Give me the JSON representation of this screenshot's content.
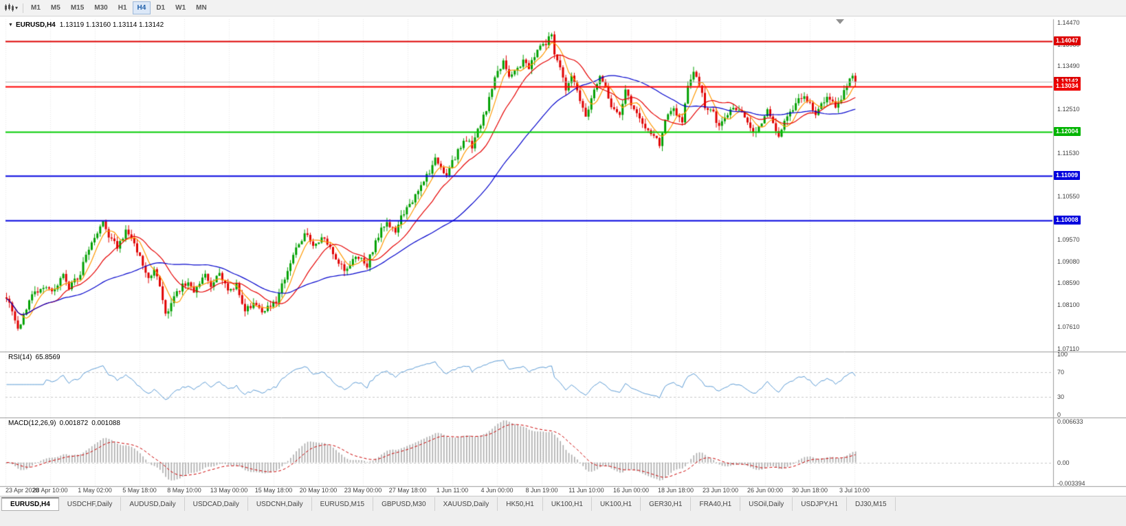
{
  "toolbar": {
    "timeframes": [
      "M1",
      "M5",
      "M15",
      "M30",
      "H1",
      "H4",
      "D1",
      "W1",
      "MN"
    ],
    "active_timeframe": "H4"
  },
  "chart": {
    "title_symbol": "EURUSD,H4",
    "title_ohlc": "1.13119 1.13160 1.13114 1.13142",
    "price_axis_ticks": [
      "1.14470",
      "1.13980",
      "1.13490",
      "1.13000",
      "1.12510",
      "1.12020",
      "1.11530",
      "1.11040",
      "1.10550",
      "1.10060",
      "1.09570",
      "1.09080",
      "1.08590",
      "1.08100",
      "1.07610",
      "1.07110"
    ],
    "hlines": [
      {
        "price": 1.14047,
        "label": "1.14047",
        "line_color": "#DD0000",
        "box_color": "#DD0000",
        "width": 2
      },
      {
        "price": 1.13142,
        "label": "1.13142",
        "line_color": "#B4B4B4",
        "box_color": "#DD0000",
        "width": 1
      },
      {
        "price": 1.13034,
        "label": "1.13034",
        "line_color": "#FF0000",
        "box_color": "#EE0000",
        "width": 2
      },
      {
        "price": 1.12004,
        "label": "1.12004",
        "line_color": "#00CC00",
        "box_color": "#00B400",
        "width": 2
      },
      {
        "price": 1.11009,
        "label": "1.11009",
        "line_color": "#0000E0",
        "box_color": "#0000DD",
        "width": 2
      },
      {
        "price": 1.10008,
        "label": "1.10008",
        "line_color": "#0000E0",
        "box_color": "#0000DD",
        "width": 2
      }
    ],
    "date_labels": [
      "23 Apr 2020",
      "28 Apr 10:00",
      "1 May 02:00",
      "5 May 18:00",
      "8 May 10:00",
      "13 May 00:00",
      "15 May 18:00",
      "20 May 10:00",
      "23 May 00:00",
      "27 May 18:00",
      "1 Jun 11:00",
      "4 Jun 00:00",
      "8 Jun 19:00",
      "11 Jun 10:00",
      "16 Jun 00:00",
      "18 Jun 18:00",
      "23 Jun 10:00",
      "26 Jun 00:00",
      "30 Jun 18:00",
      "3 Jul 10:00"
    ]
  },
  "chart_data": {
    "type": "candlestick",
    "symbol": "EURUSD",
    "timeframe": "H4",
    "num_candles": 300,
    "last_close": 1.13142,
    "price_range_shown": [
      1.0711,
      1.1447
    ],
    "up_color": "#00A000",
    "down_color": "#E00000",
    "noise_seed": 97,
    "noise_amp": 0.0014,
    "wick_amp": 0.0012,
    "anchors": [
      [
        0,
        1.083
      ],
      [
        4,
        1.0755
      ],
      [
        9,
        1.083
      ],
      [
        13,
        1.0855
      ],
      [
        16,
        1.084
      ],
      [
        20,
        1.0875
      ],
      [
        22,
        1.085
      ],
      [
        26,
        1.088
      ],
      [
        28,
        1.093
      ],
      [
        32,
        1.0975
      ],
      [
        34,
        1.1
      ],
      [
        36,
        1.0965
      ],
      [
        39,
        1.094
      ],
      [
        42,
        1.0975
      ],
      [
        45,
        1.095
      ],
      [
        48,
        1.09
      ],
      [
        50,
        1.0865
      ],
      [
        52,
        1.0895
      ],
      [
        54,
        1.0855
      ],
      [
        56,
        1.0785
      ],
      [
        58,
        1.082
      ],
      [
        61,
        1.0845
      ],
      [
        64,
        1.0865
      ],
      [
        66,
        1.084
      ],
      [
        70,
        1.0875
      ],
      [
        72,
        1.0855
      ],
      [
        75,
        1.088
      ],
      [
        78,
        1.084
      ],
      [
        81,
        1.0855
      ],
      [
        84,
        1.08
      ],
      [
        87,
        1.0815
      ],
      [
        90,
        1.08
      ],
      [
        93,
        1.081
      ],
      [
        95,
        1.082
      ],
      [
        98,
        1.087
      ],
      [
        100,
        1.091
      ],
      [
        103,
        1.0945
      ],
      [
        106,
        1.0975
      ],
      [
        108,
        1.094
      ],
      [
        111,
        1.096
      ],
      [
        114,
        1.0945
      ],
      [
        117,
        1.09
      ],
      [
        120,
        1.089
      ],
      [
        123,
        1.092
      ],
      [
        127,
        1.09
      ],
      [
        129,
        1.0935
      ],
      [
        132,
        1.098
      ],
      [
        134,
        1.1
      ],
      [
        137,
        1.0975
      ],
      [
        139,
        1.1015
      ],
      [
        143,
        1.104
      ],
      [
        146,
        1.108
      ],
      [
        149,
        1.111
      ],
      [
        151,
        1.1145
      ],
      [
        155,
        1.11
      ],
      [
        157,
        1.113
      ],
      [
        159,
        1.1155
      ],
      [
        161,
        1.1185
      ],
      [
        164,
        1.117
      ],
      [
        167,
        1.122
      ],
      [
        169,
        1.125
      ],
      [
        172,
        1.132
      ],
      [
        175,
        1.136
      ],
      [
        177,
        1.133
      ],
      [
        180,
        1.134
      ],
      [
        182,
        1.1365
      ],
      [
        184,
        1.134
      ],
      [
        187,
        1.139
      ],
      [
        190,
        1.14
      ],
      [
        192,
        1.142
      ],
      [
        193,
        1.138
      ],
      [
        195,
        1.135
      ],
      [
        197,
        1.13
      ],
      [
        199,
        1.133
      ],
      [
        201,
        1.129
      ],
      [
        204,
        1.1235
      ],
      [
        206,
        1.128
      ],
      [
        209,
        1.132
      ],
      [
        211,
        1.13
      ],
      [
        213,
        1.126
      ],
      [
        216,
        1.124
      ],
      [
        218,
        1.129
      ],
      [
        221,
        1.1255
      ],
      [
        222,
        1.124
      ],
      [
        224,
        1.1215
      ],
      [
        227,
        1.119
      ],
      [
        230,
        1.1175
      ],
      [
        232,
        1.123
      ],
      [
        235,
        1.1255
      ],
      [
        238,
        1.122
      ],
      [
        240,
        1.13
      ],
      [
        242,
        1.134
      ],
      [
        244,
        1.131
      ],
      [
        246,
        1.126
      ],
      [
        249,
        1.124
      ],
      [
        251,
        1.121
      ],
      [
        253,
        1.1235
      ],
      [
        256,
        1.126
      ],
      [
        258,
        1.1245
      ],
      [
        261,
        1.1225
      ],
      [
        263,
        1.12
      ],
      [
        266,
        1.122
      ],
      [
        268,
        1.1245
      ],
      [
        269,
        1.123
      ],
      [
        272,
        1.1195
      ],
      [
        274,
        1.1225
      ],
      [
        277,
        1.125
      ],
      [
        279,
        1.127
      ],
      [
        281,
        1.1285
      ],
      [
        284,
        1.1255
      ],
      [
        285,
        1.124
      ],
      [
        287,
        1.126
      ],
      [
        290,
        1.128
      ],
      [
        292,
        1.125
      ],
      [
        294,
        1.127
      ],
      [
        296,
        1.131
      ],
      [
        298,
        1.133
      ],
      [
        299,
        1.13142
      ]
    ],
    "moving_averages": [
      {
        "period": 6,
        "color": "#FF9900"
      },
      {
        "period": 16,
        "color": "#E60000"
      },
      {
        "period": 45,
        "color": "#0000CC"
      }
    ]
  },
  "rsi": {
    "label": "RSI(14)",
    "value": "65.8569",
    "color": "#5B9BD5",
    "axis_labels": [
      "100",
      "70",
      "30",
      "0"
    ],
    "levels": [
      70,
      30
    ]
  },
  "macd": {
    "label": "MACD(12,26,9)",
    "value_main": "0.001872",
    "value_signal": "0.001088",
    "histogram_color": "#ABABAB",
    "signal_color": "#CC0000",
    "axis_labels": [
      "0.006633",
      "0.00",
      "-0.003394"
    ],
    "params": [
      12,
      26,
      9
    ]
  },
  "tabs": {
    "active": "EURUSD,H4",
    "items": [
      "EURUSD,H4",
      "USDCHF,Daily",
      "AUDUSD,Daily",
      "USDCAD,Daily",
      "USDCNH,Daily",
      "EURUSD,M15",
      "GBPUSD,M30",
      "XAUUSD,Daily",
      "HK50,H1",
      "UK100,H1",
      "UK100,H1",
      "GER30,H1",
      "FRA40,H1",
      "USOil,Daily",
      "USDJPY,H1",
      "DJ30,M15"
    ]
  }
}
